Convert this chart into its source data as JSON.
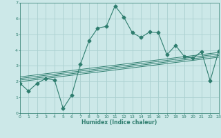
{
  "xlabel": "Humidex (Indice chaleur)",
  "x_data": [
    0,
    1,
    2,
    3,
    4,
    5,
    6,
    7,
    8,
    9,
    10,
    11,
    12,
    13,
    14,
    15,
    16,
    17,
    18,
    19,
    20,
    21,
    22,
    23
  ],
  "y_main": [
    1.9,
    1.4,
    1.9,
    2.2,
    2.1,
    0.3,
    1.15,
    3.1,
    4.6,
    5.4,
    5.5,
    6.8,
    6.1,
    5.1,
    4.8,
    5.15,
    5.1,
    3.7,
    4.3,
    3.6,
    3.5,
    3.9,
    2.05,
    3.95
  ],
  "line_color": "#2e7d6e",
  "bg_color": "#cce8e8",
  "grid_color": "#aad0d0",
  "ylim": [
    0,
    7
  ],
  "xlim": [
    0,
    23
  ],
  "yticks": [
    0,
    1,
    2,
    3,
    4,
    5,
    6,
    7
  ],
  "xticks": [
    0,
    1,
    2,
    3,
    4,
    5,
    6,
    7,
    8,
    9,
    10,
    11,
    12,
    13,
    14,
    15,
    16,
    17,
    18,
    19,
    20,
    21,
    22,
    23
  ],
  "regression_lines": [
    {
      "start_x": 0,
      "start_y": 2.0,
      "end_x": 23,
      "end_y": 3.55
    },
    {
      "start_x": 0,
      "start_y": 2.1,
      "end_x": 23,
      "end_y": 3.65
    },
    {
      "start_x": 0,
      "start_y": 2.2,
      "end_x": 23,
      "end_y": 3.75
    },
    {
      "start_x": 0,
      "start_y": 2.3,
      "end_x": 23,
      "end_y": 3.85
    }
  ]
}
